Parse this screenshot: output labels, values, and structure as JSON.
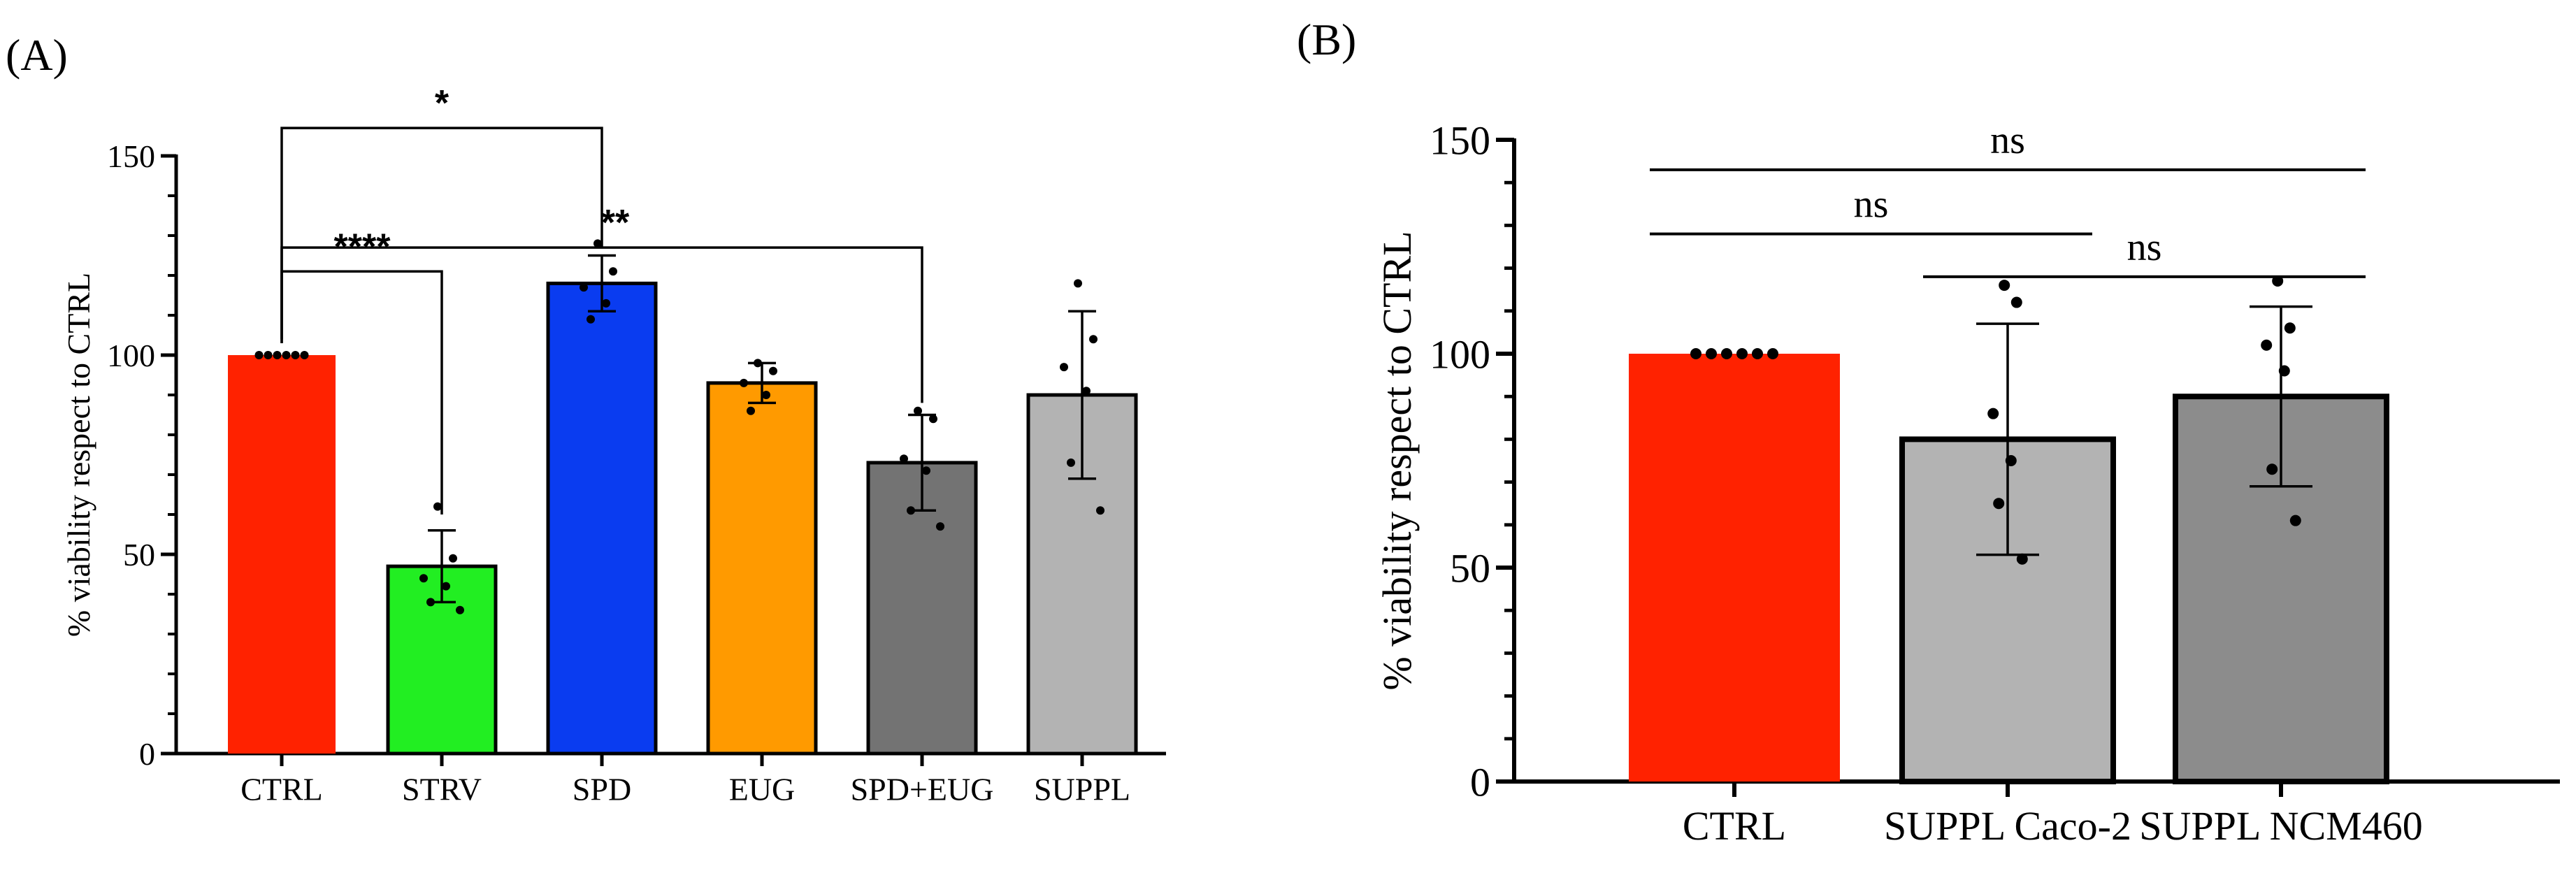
{
  "chart_data": [
    {
      "panel": "(A)",
      "type": "bar",
      "title": "",
      "xlabel": "",
      "ylabel": "% viability respect to CTRL",
      "ylim": [
        0,
        150
      ],
      "yticks": [
        0,
        50,
        100,
        150
      ],
      "grid": false,
      "categories": [
        "CTRL",
        "STRV",
        "SPD",
        "EUG",
        "SPD+EUG",
        "SUPPL"
      ],
      "values": [
        100,
        47,
        118,
        93,
        73,
        90
      ],
      "errors": [
        0,
        9,
        7,
        5,
        12,
        21
      ],
      "colors": [
        "#ff2200",
        "#22ee22",
        "#0a3cf0",
        "#ff9a00",
        "#737373",
        "#b3b3b3"
      ],
      "points": [
        [
          100,
          100,
          100,
          100,
          100,
          100
        ],
        [
          62,
          49,
          44,
          42,
          38,
          36
        ],
        [
          128,
          121,
          117,
          113,
          109
        ],
        [
          98,
          96,
          93,
          90,
          86
        ],
        [
          86,
          84,
          74,
          71,
          61,
          57
        ],
        [
          118,
          104,
          97,
          91,
          73,
          61
        ]
      ],
      "significance": [
        {
          "groups": [
            "CTRL",
            "SPD"
          ],
          "label": "*"
        },
        {
          "groups": [
            "CTRL",
            "SPD+EUG"
          ],
          "label": "**"
        },
        {
          "groups": [
            "CTRL",
            "STRV"
          ],
          "label": "****"
        }
      ]
    },
    {
      "panel": "(B)",
      "type": "bar",
      "title": "",
      "xlabel": "",
      "ylabel": "% viability respect to CTRL",
      "ylim": [
        0,
        150
      ],
      "yticks": [
        0,
        50,
        100,
        150
      ],
      "grid": false,
      "categories": [
        "CTRL",
        "SUPPL Caco-2",
        "SUPPL NCM460"
      ],
      "values": [
        100,
        80,
        90
      ],
      "errors": [
        0,
        27,
        21
      ],
      "colors": [
        "#ff2200",
        "#b3b3b3",
        "#8c8c8c"
      ],
      "points": [
        [
          100,
          100,
          100,
          100,
          100,
          100
        ],
        [
          116,
          112,
          86,
          75,
          65,
          52
        ],
        [
          117,
          106,
          102,
          96,
          73,
          61
        ]
      ],
      "significance": [
        {
          "groups": [
            "CTRL",
            "SUPPL NCM460"
          ],
          "label": "ns"
        },
        {
          "groups": [
            "CTRL",
            "SUPPL Caco-2"
          ],
          "label": "ns"
        },
        {
          "groups": [
            "SUPPL Caco-2",
            "SUPPL NCM460"
          ],
          "label": "ns"
        }
      ]
    }
  ]
}
